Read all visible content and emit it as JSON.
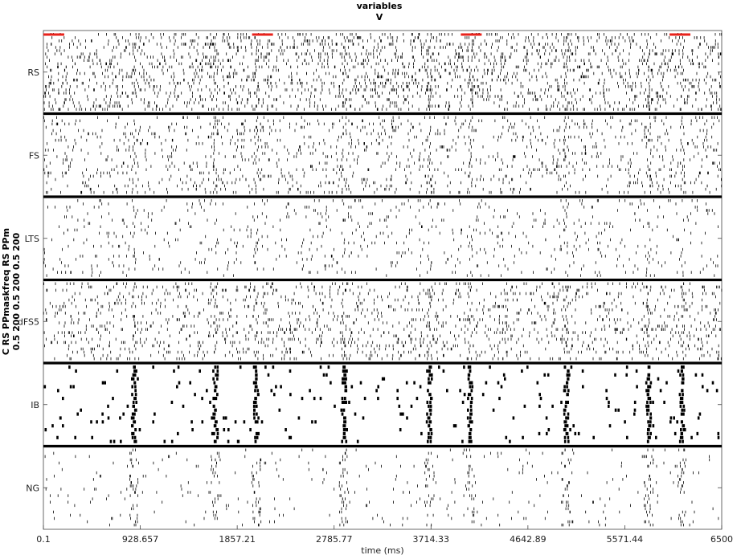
{
  "chart_data": {
    "type": "raster",
    "title_lines": [
      "variables",
      "V"
    ],
    "ylabel_lines": [
      "C RS PPmaskfreq RS PPm",
      "0.5 200 0.5 200 0.5 200"
    ],
    "xlabel": "time (ms)",
    "xlim": [
      0.1,
      6500
    ],
    "x_ticks": [
      0.1,
      928.657,
      1857.21,
      2785.77,
      3714.33,
      4642.89,
      5571.44,
      6500
    ],
    "x_tick_labels": [
      "0.1",
      "928.657",
      "1857.21",
      "2785.77",
      "3714.33",
      "4642.89",
      "5571.44",
      "6500"
    ],
    "populations": [
      "RS",
      "FS",
      "LTS",
      "dFS5",
      "IB",
      "NG"
    ],
    "mask_segments": [
      [
        0.1,
        200
      ],
      [
        2000,
        2200
      ],
      [
        4000,
        4200
      ],
      [
        6000,
        6200
      ]
    ],
    "mask_color": "#e8221b",
    "bursts_ms": [
      870,
      1650,
      2040,
      2880,
      3700,
      4090,
      5010,
      5800,
      6120
    ]
  }
}
